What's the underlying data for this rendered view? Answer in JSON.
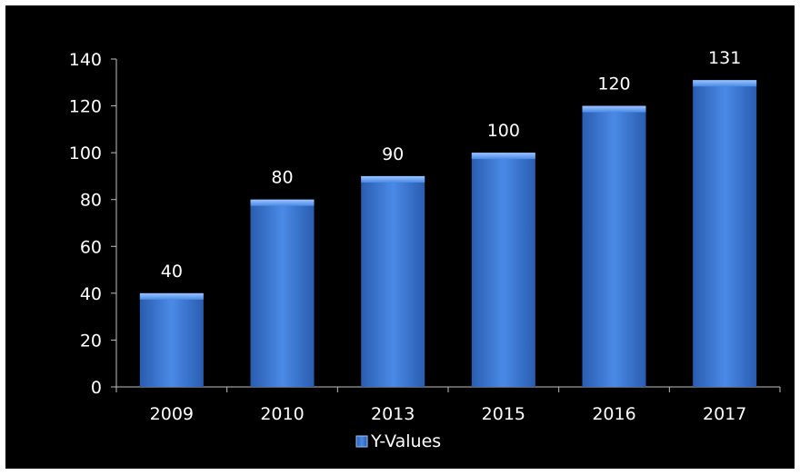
{
  "chart_data": {
    "type": "bar",
    "title": "",
    "xlabel": "",
    "ylabel": "",
    "categories": [
      "2009",
      "2010",
      "2013",
      "2015",
      "2016",
      "2017"
    ],
    "series": [
      {
        "name": "Y-Values",
        "values": [
          40,
          80,
          90,
          100,
          120,
          131
        ]
      }
    ],
    "ylim": [
      0,
      140
    ],
    "yticks": [
      0,
      20,
      40,
      60,
      80,
      100,
      120,
      140
    ],
    "grid": false,
    "legend_position": "bottom",
    "colors": {
      "background": "#000000",
      "bar": "#3f7fd9",
      "text": "#ffffff"
    }
  }
}
